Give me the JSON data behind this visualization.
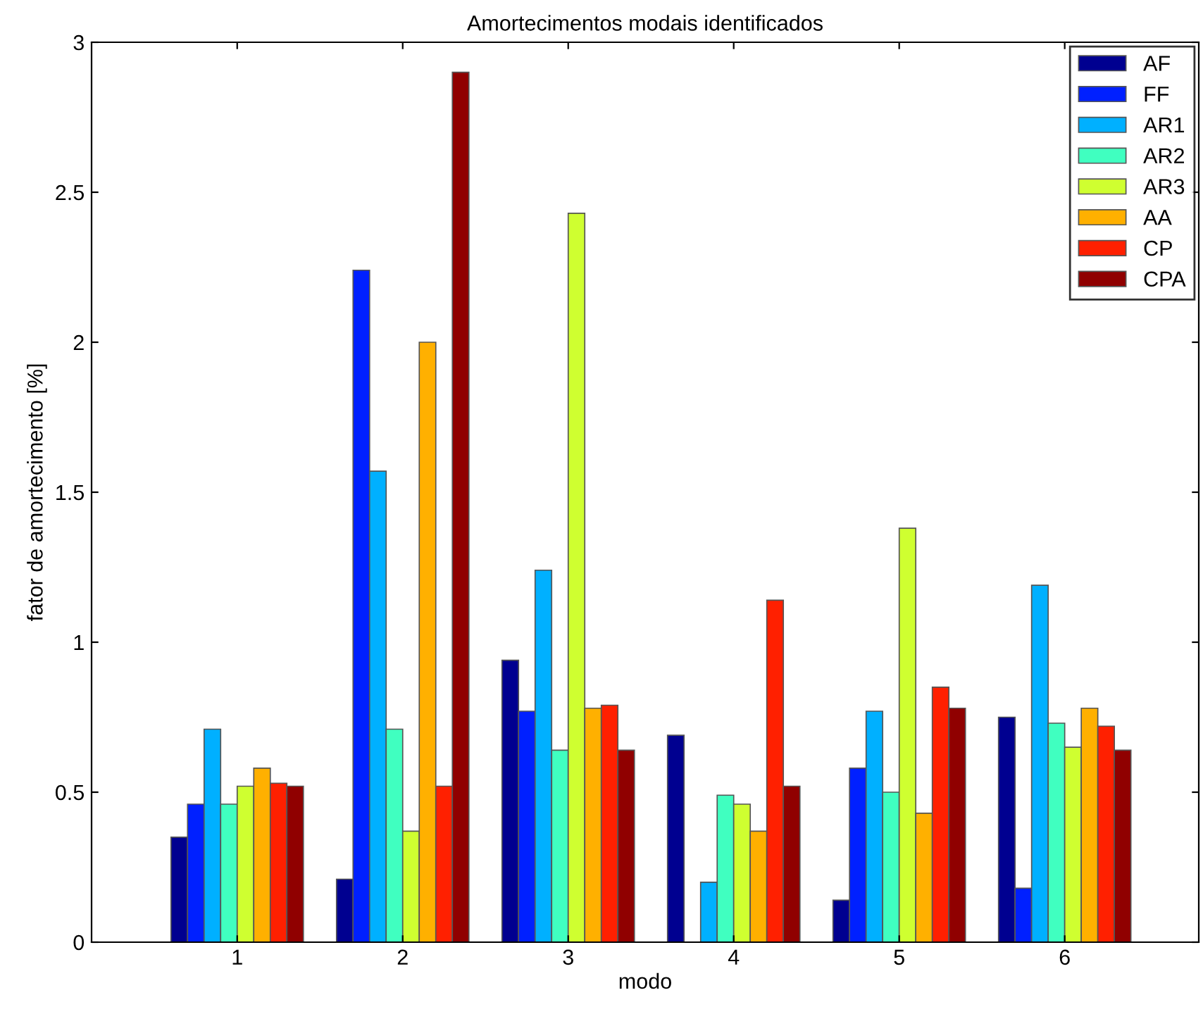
{
  "chart_data": {
    "type": "bar",
    "title": "Amortecimentos modais identificados",
    "xlabel": "modo",
    "ylabel": "fator de amortecimento [%]",
    "categories": [
      "1",
      "2",
      "3",
      "4",
      "5",
      "6"
    ],
    "series": [
      {
        "name": "AF",
        "color": "#000090",
        "values": [
          0.35,
          0.21,
          0.94,
          0.69,
          0.14,
          0.75
        ]
      },
      {
        "name": "FF",
        "color": "#0020ff",
        "values": [
          0.46,
          2.24,
          0.77,
          null,
          0.58,
          0.18
        ]
      },
      {
        "name": "AR1",
        "color": "#00b0ff",
        "values": [
          0.71,
          1.57,
          1.24,
          0.2,
          0.77,
          1.19
        ]
      },
      {
        "name": "AR2",
        "color": "#40ffc0",
        "values": [
          0.46,
          0.71,
          0.64,
          0.49,
          0.5,
          0.73
        ]
      },
      {
        "name": "AR3",
        "color": "#cfff30",
        "values": [
          0.52,
          0.37,
          2.43,
          0.46,
          1.38,
          0.65
        ]
      },
      {
        "name": "AA",
        "color": "#ffb000",
        "values": [
          0.58,
          2.0,
          0.78,
          0.37,
          0.43,
          0.78
        ]
      },
      {
        "name": "CP",
        "color": "#ff2000",
        "values": [
          0.53,
          0.52,
          0.79,
          1.14,
          0.85,
          0.72
        ]
      },
      {
        "name": "CPA",
        "color": "#900000",
        "values": [
          0.52,
          2.9,
          0.64,
          0.52,
          0.78,
          0.64
        ]
      }
    ],
    "ylim": [
      0,
      3
    ],
    "yticks": [
      0,
      0.5,
      1,
      1.5,
      2,
      2.5,
      3
    ],
    "grid": false,
    "legend": "top right"
  }
}
